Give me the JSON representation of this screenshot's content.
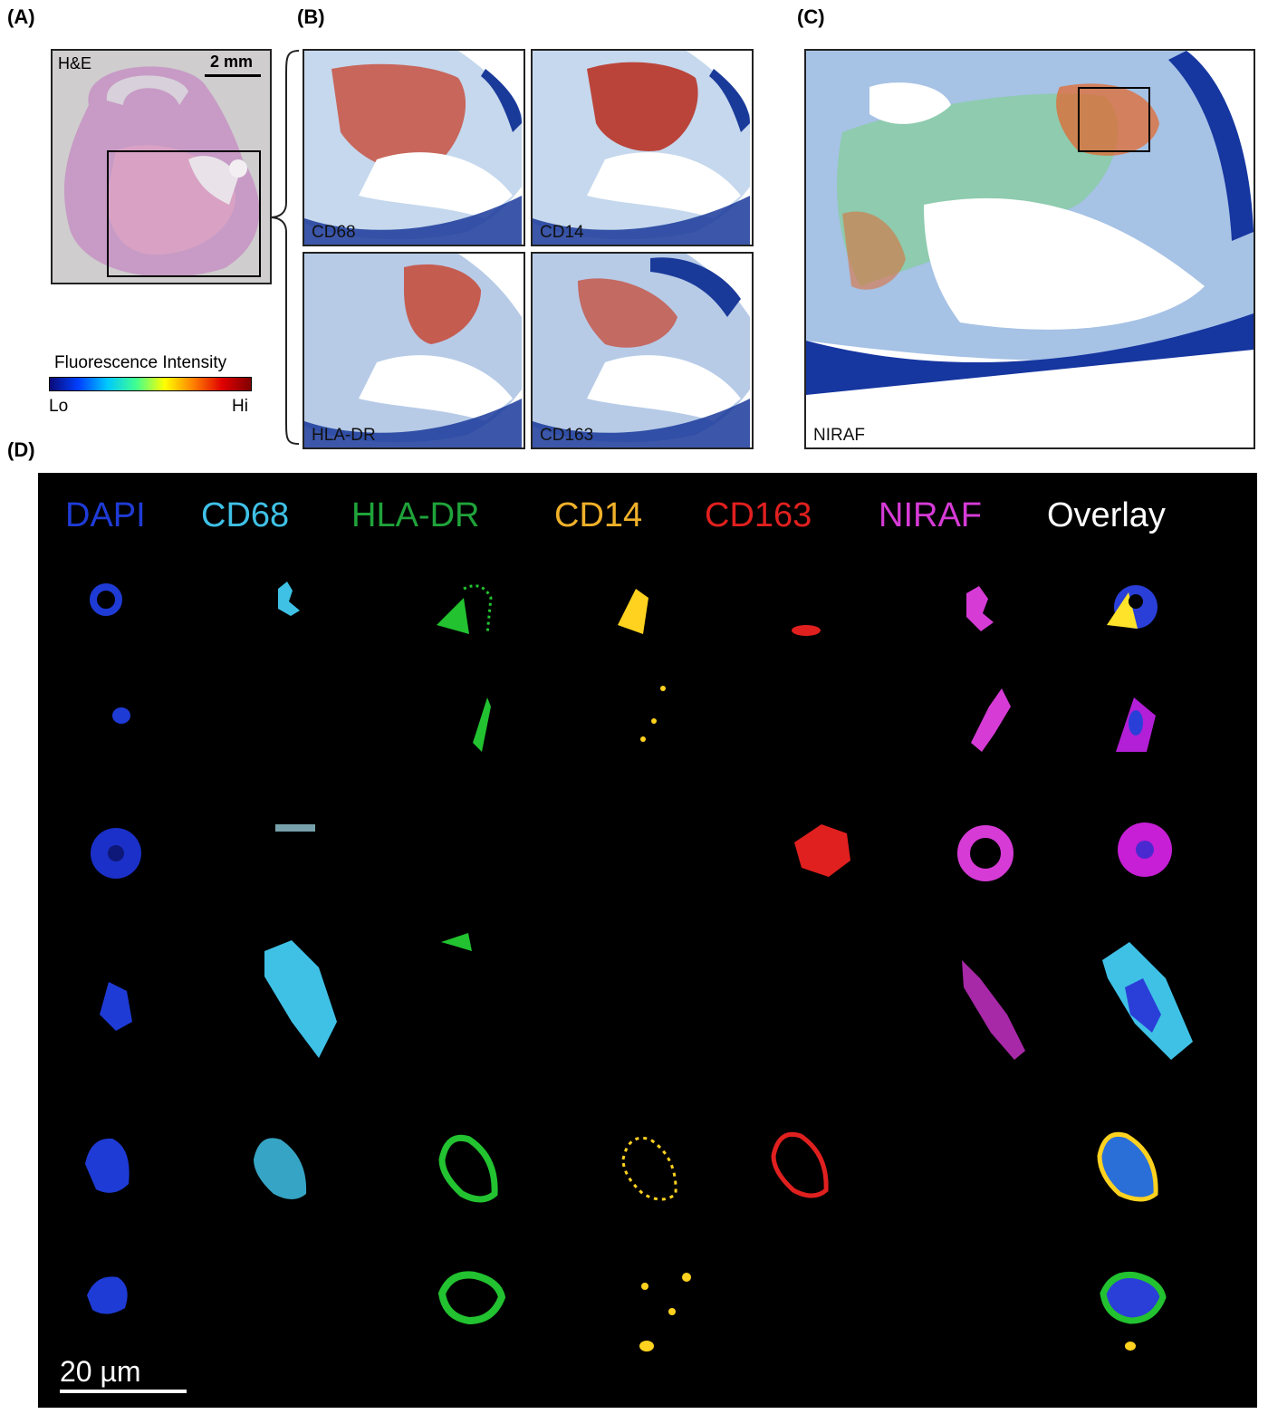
{
  "panels": {
    "a": {
      "label": "(A)",
      "stain": "H&E",
      "scale": "2 mm",
      "colorbar": {
        "title": "Fluorescence Intensity",
        "lo": "Lo",
        "hi": "Hi"
      }
    },
    "b": {
      "label": "(B)",
      "maps": [
        "CD68",
        "CD14",
        "HLA-DR",
        "CD163"
      ]
    },
    "c": {
      "label": "(C)",
      "map": "NIRAF"
    },
    "d": {
      "label": "(D)",
      "channels": [
        {
          "name": "DAPI",
          "color": "#1f3bd6"
        },
        {
          "name": "CD68",
          "color": "#3fc1e6"
        },
        {
          "name": "HLA-DR",
          "color": "#1fa33a"
        },
        {
          "name": "CD14",
          "color": "#f0b12a"
        },
        {
          "name": "CD163",
          "color": "#e0201f"
        },
        {
          "name": "NIRAF",
          "color": "#d63bd6"
        },
        {
          "name": "Overlay",
          "color": "#ffffff"
        }
      ],
      "scale_bar": "20 µm"
    }
  }
}
